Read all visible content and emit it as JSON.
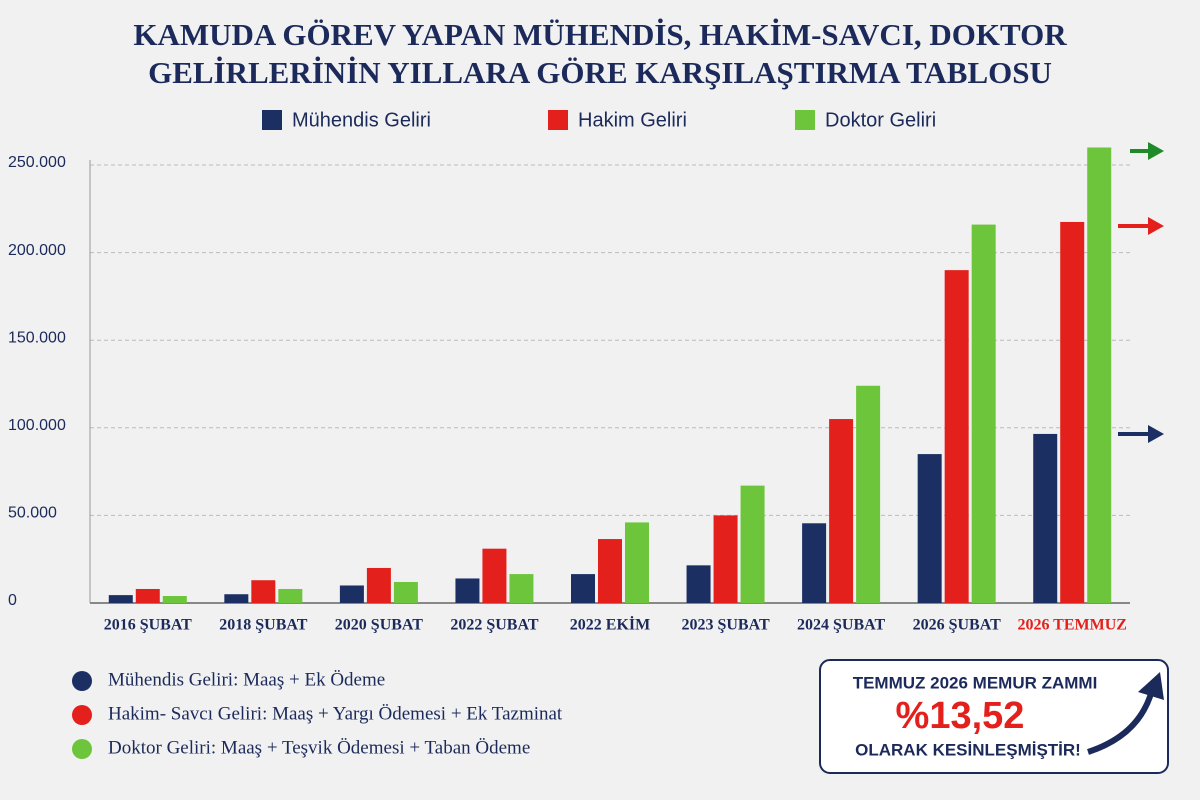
{
  "chart_data": {
    "type": "bar",
    "title": "KAMUDA GÖREV YAPAN MÜHENDİS, HAKİM-SAVCI, DOKTOR",
    "subtitle": "GELİRLERİNİN YILLARA GÖRE KARŞILAŞTIRMA TABLOSU",
    "categories": [
      "2016 ŞUBAT",
      "2018 ŞUBAT",
      "2020 ŞUBAT",
      "2022 ŞUBAT",
      "2022 EKİM",
      "2023 ŞUBAT",
      "2024 ŞUBAT",
      "2026 ŞUBAT",
      "2026 TEMMUZ"
    ],
    "series": [
      {
        "name": "Mühendis Geliri",
        "color": "#1b2f63",
        "values": [
          4500,
          5000,
          10000,
          14000,
          16500,
          21500,
          45500,
          85000,
          96500
        ]
      },
      {
        "name": "Hakim Geliri",
        "color": "#e3201b",
        "values": [
          8000,
          13000,
          20000,
          31000,
          36500,
          50000,
          105000,
          190000,
          217500
        ]
      },
      {
        "name": "Doktor Geliri",
        "color": "#6cc53a",
        "values": [
          4000,
          8000,
          12000,
          16500,
          46000,
          67000,
          124000,
          216000,
          260000
        ]
      }
    ],
    "ylim": [
      0,
      260000
    ],
    "yticks": [
      0,
      {
        "value": 50000,
        "label": "50.000"
      },
      {
        "value": 100000,
        "label": "100.000"
      },
      {
        "value": 150000,
        "label": "150.000"
      },
      {
        "value": 200000,
        "label": "200.000"
      },
      {
        "value": 250000,
        "label": "250.000"
      }
    ],
    "grid": true,
    "legend_details": [
      {
        "text": "Mühendis Geliri: Maaş + Ek Ödeme",
        "color": "#1b2f63"
      },
      {
        "text": "Hakim- Savcı Geliri: Maaş + Yargı Ödemesi + Ek Tazminat",
        "color": "#e3201b"
      },
      {
        "text": "Doktor Geliri: Maaş + Teşvik Ödemesi + Taban  Ödeme",
        "color": "#6cc53a"
      }
    ],
    "callout": {
      "line1": "TEMMUZ 2026 MEMUR ZAMMI",
      "value": "%13,52",
      "line2": "OLARAK KESİNLEŞMİŞTİR!"
    }
  }
}
